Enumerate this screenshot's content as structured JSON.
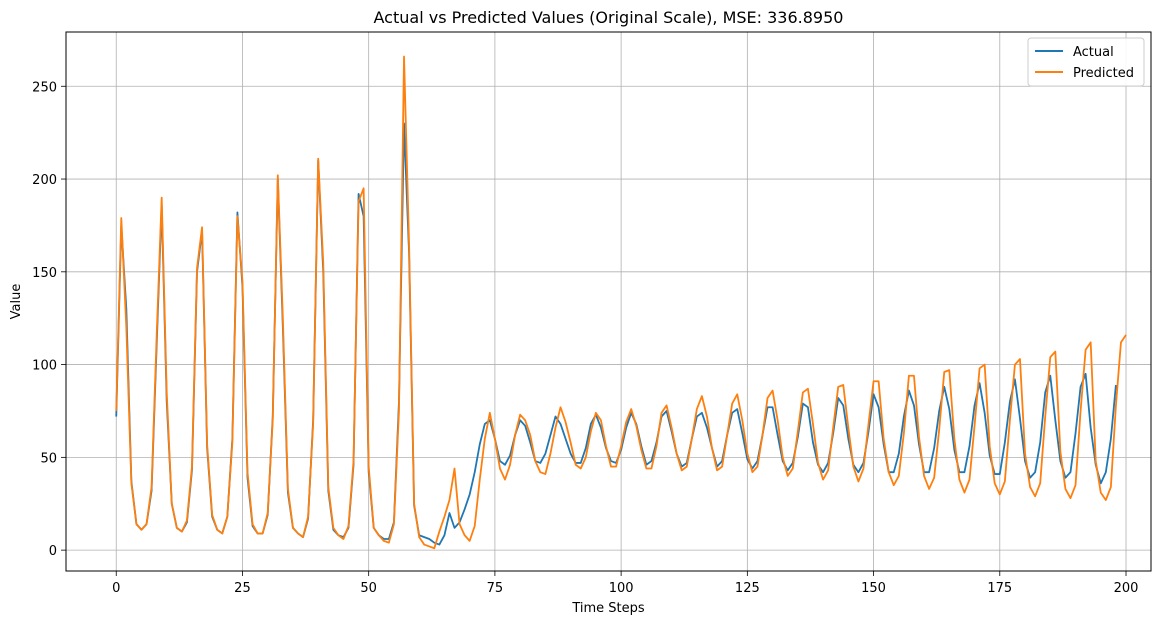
{
  "chart_data": {
    "type": "line",
    "title": "Actual vs Predicted Values (Original Scale), MSE: 336.8950",
    "xlabel": "Time Steps",
    "ylabel": "Value",
    "xlim": [
      -9.95,
      204.95
    ],
    "ylim": [
      -11.25,
      279.25
    ],
    "x_ticks": [
      0,
      25,
      50,
      75,
      100,
      125,
      150,
      175,
      200
    ],
    "y_ticks": [
      0,
      50,
      100,
      150,
      200,
      250
    ],
    "grid": true,
    "legend_position": "top-right",
    "series": [
      {
        "name": "Actual",
        "color": "#1f77b4",
        "values": [
          72,
          175,
          130,
          37,
          14,
          11,
          14,
          32,
          110,
          186,
          80,
          25,
          12,
          10,
          15,
          43,
          150,
          172,
          55,
          18,
          11,
          9,
          18,
          60,
          182,
          142,
          39,
          13,
          9,
          9,
          19,
          72,
          200,
          120,
          31,
          12,
          9,
          7,
          17,
          70,
          210,
          150,
          32,
          11,
          8,
          7,
          12,
          46,
          192,
          180,
          42,
          12,
          8,
          6,
          6,
          15,
          80,
          230,
          160,
          24,
          8,
          7,
          6,
          4,
          3,
          8,
          20,
          12,
          15,
          22,
          30,
          42,
          57,
          68,
          70,
          60,
          48,
          46,
          51,
          62,
          70,
          67,
          58,
          48,
          47,
          52,
          62,
          72,
          68,
          60,
          52,
          47,
          47,
          55,
          68,
          73,
          66,
          55,
          48,
          47,
          54,
          66,
          74,
          68,
          56,
          46,
          48,
          58,
          72,
          75,
          64,
          52,
          45,
          47,
          60,
          72,
          74,
          66,
          55,
          45,
          48,
          62,
          74,
          76,
          63,
          49,
          44,
          48,
          62,
          77,
          77,
          62,
          48,
          43,
          47,
          61,
          79,
          77,
          58,
          46,
          42,
          47,
          63,
          82,
          78,
          60,
          46,
          42,
          47,
          64,
          84,
          77,
          57,
          42,
          42,
          52,
          72,
          86,
          78,
          57,
          42,
          42,
          55,
          75,
          88,
          76,
          54,
          42,
          42,
          56,
          78,
          90,
          74,
          51,
          41,
          41,
          58,
          80,
          92,
          71,
          48,
          39,
          42,
          58,
          85,
          94,
          70,
          48,
          39,
          42,
          63,
          88,
          95,
          66,
          46,
          36,
          42,
          60,
          89
        ]
      },
      {
        "name": "Predicted",
        "color": "#ff7f0e",
        "values": [
          75,
          179,
          120,
          36,
          14,
          11,
          14,
          34,
          115,
          190,
          85,
          25,
          12,
          10,
          16,
          45,
          152,
          174,
          57,
          19,
          11,
          9,
          18,
          58,
          180,
          145,
          42,
          14,
          9,
          9,
          20,
          70,
          202,
          125,
          33,
          12,
          9,
          7,
          18,
          68,
          211,
          155,
          34,
          12,
          8,
          6,
          13,
          48,
          188,
          195,
          45,
          12,
          8,
          5,
          4,
          14,
          75,
          266,
          165,
          25,
          7,
          3,
          2,
          1,
          10,
          18,
          27,
          44,
          14,
          8,
          5,
          13,
          38,
          60,
          74,
          60,
          44,
          38,
          46,
          62,
          73,
          70,
          62,
          48,
          42,
          41,
          52,
          66,
          77,
          69,
          58,
          46,
          44,
          50,
          64,
          74,
          70,
          56,
          45,
          45,
          56,
          69,
          76,
          67,
          54,
          44,
          44,
          56,
          74,
          78,
          66,
          52,
          43,
          45,
          60,
          76,
          83,
          72,
          55,
          43,
          45,
          62,
          79,
          84,
          70,
          52,
          42,
          45,
          62,
          82,
          86,
          70,
          50,
          40,
          44,
          64,
          85,
          87,
          68,
          47,
          38,
          43,
          66,
          88,
          89,
          66,
          45,
          37,
          44,
          68,
          91,
          91,
          60,
          42,
          35,
          40,
          63,
          94,
          94,
          61,
          40,
          33,
          39,
          65,
          96,
          97,
          60,
          38,
          31,
          38,
          67,
          98,
          100,
          56,
          36,
          30,
          37,
          70,
          100,
          103,
          52,
          34,
          29,
          36,
          72,
          104,
          107,
          53,
          33,
          28,
          35,
          75,
          108,
          112,
          48,
          31,
          27,
          34,
          78,
          112,
          116
        ]
      }
    ]
  }
}
